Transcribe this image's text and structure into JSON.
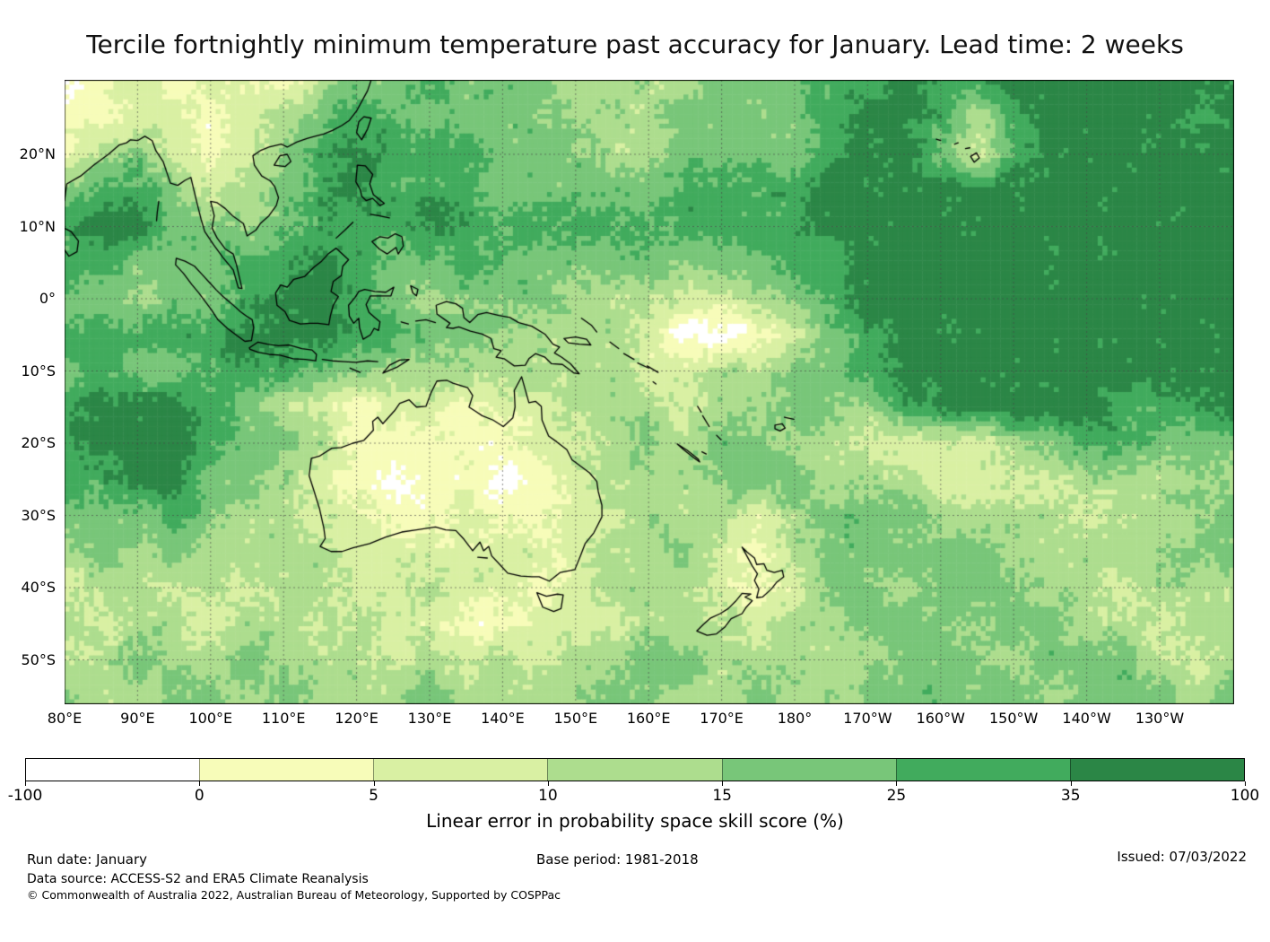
{
  "title": "Tercile fortnightly minimum temperature past accuracy for January. Lead time: 2 weeks",
  "map": {
    "lat_ticks": [
      "20°N",
      "10°N",
      "0°",
      "10°S",
      "20°S",
      "30°S",
      "40°S",
      "50°S"
    ],
    "lon_ticks": [
      "80°E",
      "90°E",
      "100°E",
      "110°E",
      "120°E",
      "130°E",
      "140°E",
      "150°E",
      "160°E",
      "170°E",
      "180°",
      "170°W",
      "160°W",
      "150°W",
      "140°W",
      "130°W"
    ]
  },
  "colorbar": {
    "tick_labels": [
      "-100",
      "0",
      "5",
      "10",
      "15",
      "25",
      "35",
      "100"
    ],
    "colors": [
      "#ffffff",
      "#f7fcb9",
      "#d9f0a3",
      "#addd8e",
      "#78c679",
      "#41ab5d",
      "#2b8646"
    ],
    "label": "Linear error in probability space skill score (%)"
  },
  "footer": {
    "run_date": "Run date: January",
    "base_period": "Base period: 1981-2018",
    "issued": "Issued: 07/03/2022",
    "data_source": "Data source: ACCESS-S2 and ERA5 Climate Reanalysis",
    "copyright": "© Commonwealth of Australia 2022, Australian Bureau of Meteorology, Supported by COSPPac"
  },
  "chart_data": {
    "type": "heatmap",
    "title": "Tercile fortnightly minimum temperature past accuracy for January. Lead time: 2 weeks",
    "value_label": "Linear error in probability space skill score (%)",
    "levels": [
      -100,
      0,
      5,
      10,
      15,
      25,
      35,
      100
    ],
    "lon_range_deg_east": [
      80,
      240
    ],
    "lat_range_deg": [
      -55.5,
      30.3
    ],
    "lon_tick_deg": [
      80,
      90,
      100,
      110,
      120,
      130,
      140,
      150,
      160,
      170,
      180,
      190,
      200,
      210,
      220,
      230
    ],
    "lat_tick_deg": [
      20,
      10,
      0,
      -10,
      -20,
      -30,
      -40,
      -50
    ],
    "grid_note": "Coarse skill-class field read from the map. Rows: lat 30N to 55S step 5deg. Cols: lon 80E to 240E step 5deg. Digit k = class between levels[k] and levels[k+1].",
    "grid": [
      "012122134454443333444556556666666",
      "112212345544443334444566535666656",
      "134212456555444334444566425666666",
      "455423456555444445555666666666666",
      "566443455565555555555666666666666",
      "554445565445444444445566666666666",
      "443445665434443332234566666666666",
      "555556665544333320012456666666666",
      "454455544333333322334456666666666",
      "566654321221223332334435666665556",
      "566654431111122343443322223455444",
      "556644321011012333444333222233343",
      "444543322112112233323444333323334",
      "343433332222222334213444443333344",
      "233232332232212333212443444332333",
      "323323323221122233323344434433233",
      "234334333232323344333334443444323",
      "433443433343333443343344444344434"
    ]
  }
}
